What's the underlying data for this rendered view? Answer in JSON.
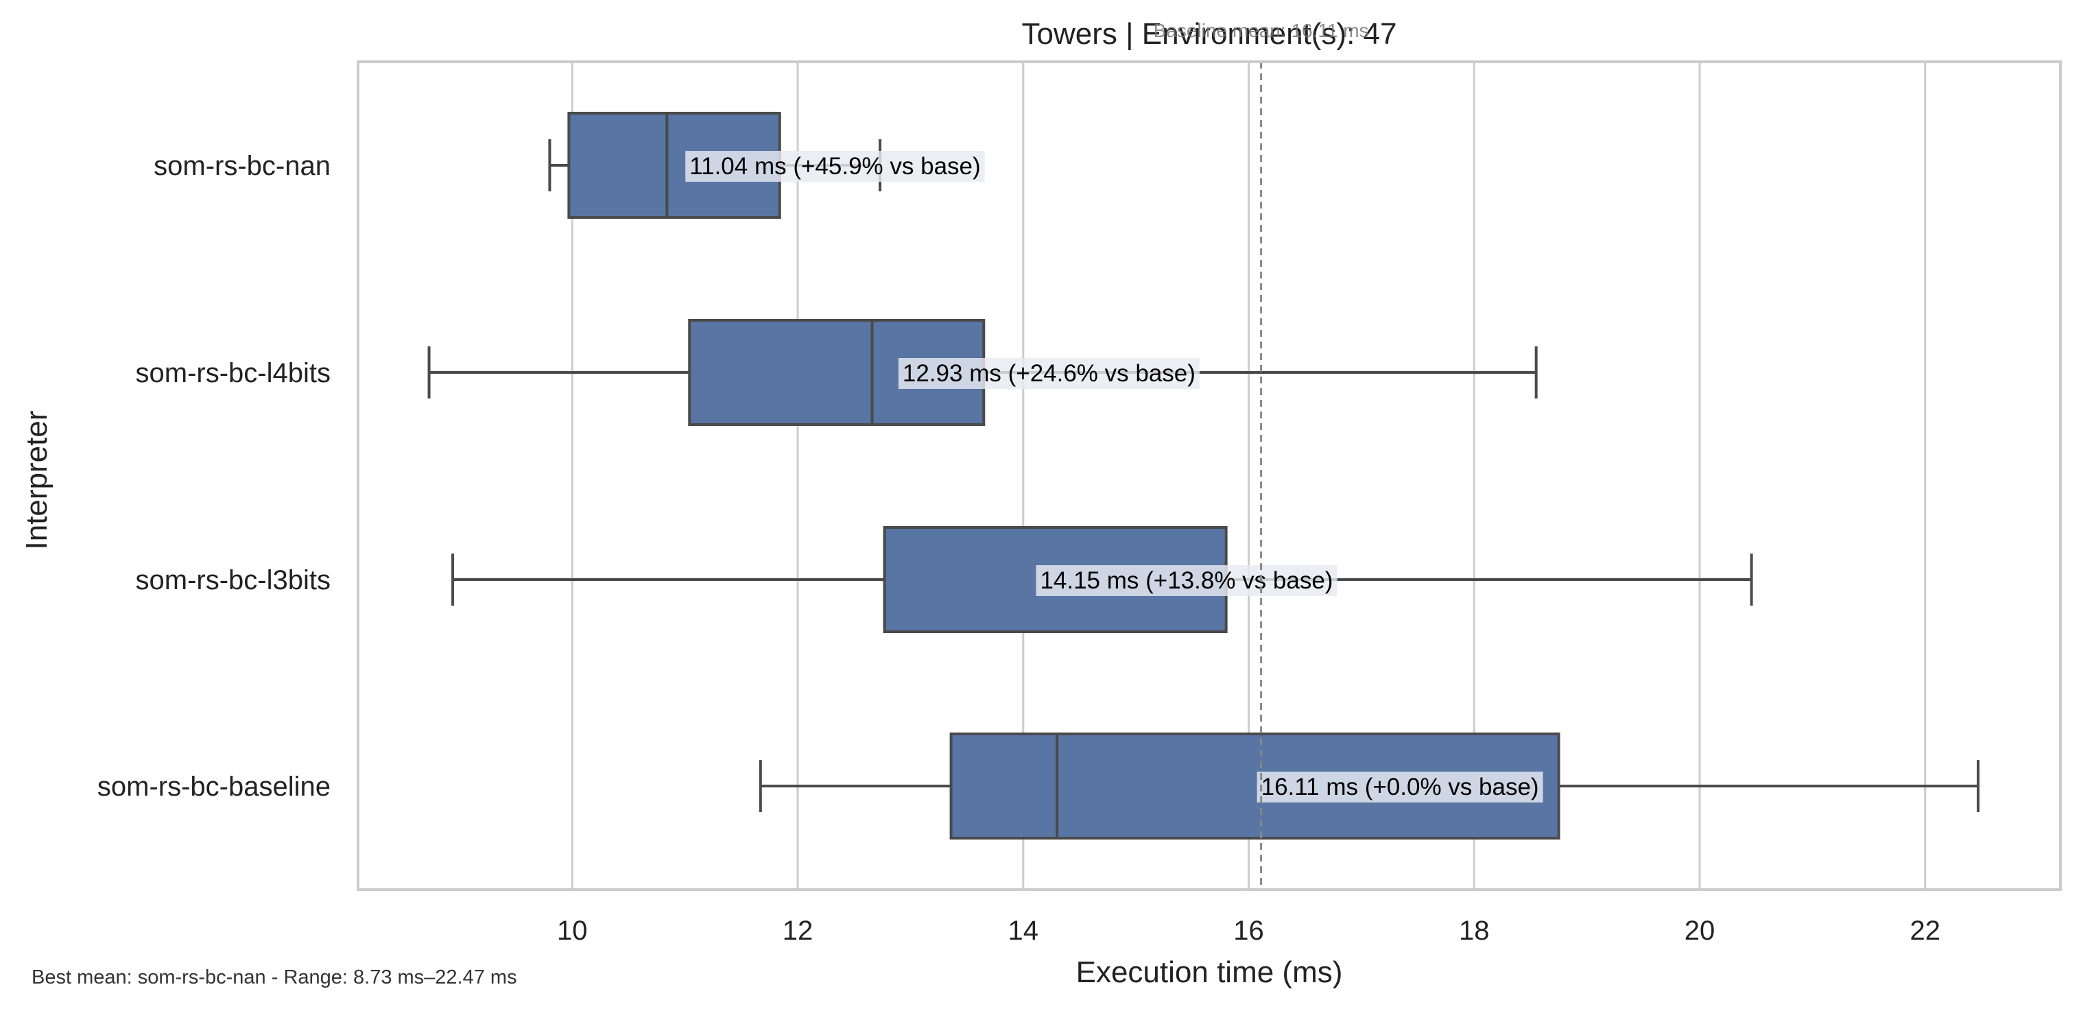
{
  "chart_data": {
    "type": "box",
    "orientation": "horizontal",
    "title": "Towers | Environment(s): 47",
    "xlabel": "Execution time (ms)",
    "ylabel": "Interpreter",
    "xlim": [
      8.1,
      23.2
    ],
    "xticks": [
      10,
      12,
      14,
      16,
      18,
      20,
      22
    ],
    "grid": "vertical",
    "baseline": {
      "value": 16.11,
      "label": "Baseline mean: 16.11 ms"
    },
    "categories": [
      "som-rs-bc-nan",
      "som-rs-bc-l4bits",
      "som-rs-bc-l3bits",
      "som-rs-bc-baseline"
    ],
    "boxes": [
      {
        "name": "som-rs-bc-nan",
        "whisker_low": 9.8,
        "q1": 9.97,
        "median": 10.84,
        "q3": 11.84,
        "whisker_high": 12.73,
        "mean": 11.04,
        "label": "11.04 ms  (+45.9% vs base)"
      },
      {
        "name": "som-rs-bc-l4bits",
        "whisker_low": 8.73,
        "q1": 11.04,
        "median": 12.66,
        "q3": 13.65,
        "whisker_high": 18.55,
        "mean": 12.93,
        "label": "12.93 ms  (+24.6% vs base)"
      },
      {
        "name": "som-rs-bc-l3bits",
        "whisker_low": 8.94,
        "q1": 12.77,
        "median": 12.77,
        "q3": 15.8,
        "whisker_high": 20.46,
        "mean": 14.15,
        "label": "14.15 ms  (+13.8% vs base)"
      },
      {
        "name": "som-rs-bc-baseline",
        "whisker_low": 11.67,
        "q1": 13.36,
        "median": 14.3,
        "q3": 18.75,
        "whisker_high": 22.47,
        "mean": 16.11,
        "label": "16.11 ms  (+0.0% vs base)"
      }
    ],
    "footer": "Best mean: som-rs-bc-nan - Range: 8.73 ms–22.47 ms"
  },
  "colors": {
    "box_fill": "#5875a4",
    "box_edge": "#4a4a4a",
    "grid": "#cccccc",
    "frame": "#cccccc",
    "baseline_line": "#888888",
    "label_bg": "#e8eaf2",
    "text": "#222222"
  }
}
